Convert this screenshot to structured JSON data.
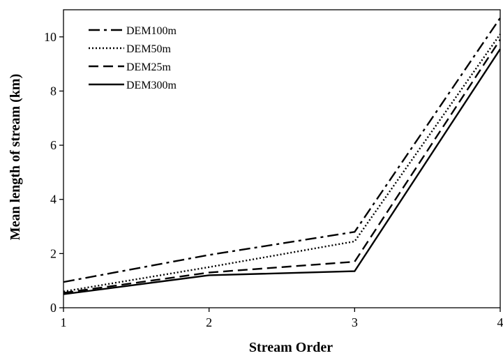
{
  "chart_data": {
    "type": "line",
    "title": "",
    "xlabel": "Stream Order",
    "ylabel": "Mean length of stream (km)",
    "x": [
      1,
      2,
      3,
      4
    ],
    "xticks": [
      "1",
      "2",
      "3",
      "4"
    ],
    "yticks": [
      "0",
      "2",
      "4",
      "6",
      "8",
      "10"
    ],
    "xlim": [
      1,
      4
    ],
    "ylim": [
      0,
      11
    ],
    "grid": false,
    "legend_position": "top-left",
    "series": [
      {
        "name": "DEM100m",
        "style": "dashdot",
        "color": "#000000",
        "values": [
          0.95,
          1.95,
          2.8,
          10.7
        ]
      },
      {
        "name": "DEM50m",
        "style": "dotted",
        "color": "#000000",
        "values": [
          0.6,
          1.5,
          2.45,
          10.1
        ]
      },
      {
        "name": "DEM25m",
        "style": "dashed",
        "color": "#000000",
        "values": [
          0.55,
          1.3,
          1.7,
          9.9
        ]
      },
      {
        "name": "DEM300m",
        "style": "solid",
        "color": "#000000",
        "values": [
          0.5,
          1.2,
          1.35,
          9.55
        ]
      }
    ]
  }
}
